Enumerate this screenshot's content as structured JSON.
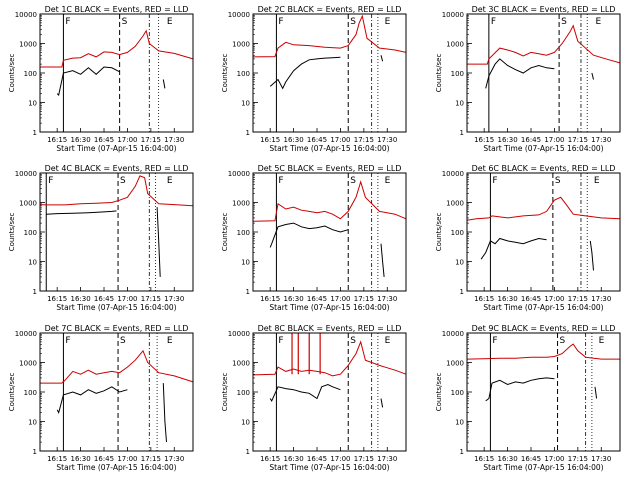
{
  "figure": {
    "shared": {
      "xlabel": "Start Time (07-Apr-15 16:04:00)",
      "ylabel": "Counts/sec",
      "x_tick_labels": [
        "16:15",
        "16:30",
        "16:45",
        "17:00",
        "17:15",
        "17:30"
      ],
      "y_tick_labels": [
        "1",
        "10",
        "100",
        "1000",
        "10000"
      ],
      "marker_labels": [
        "F",
        "S",
        "E"
      ],
      "series_colors": {
        "events": "#000000",
        "lld": "#cc0000"
      }
    }
  },
  "chart_data": [
    {
      "type": "line",
      "title": "Det 1C BLACK = Events, RED = LLD",
      "x_domain": [
        "16:04",
        "17:42"
      ],
      "ylim": [
        1,
        10000
      ],
      "y_scale": "log",
      "markers": {
        "F": "16:19",
        "S": "16:55",
        "dashdot": "17:14",
        "dotted": "17:20",
        "E": "17:24"
      },
      "lld": [
        [
          "16:04",
          160
        ],
        [
          "16:18",
          160
        ],
        [
          "16:19",
          270
        ],
        [
          "16:25",
          320
        ],
        [
          "16:30",
          330
        ],
        [
          "16:35",
          450
        ],
        [
          "16:40",
          350
        ],
        [
          "16:45",
          520
        ],
        [
          "16:50",
          500
        ],
        [
          "16:55",
          420
        ],
        [
          "17:00",
          500
        ],
        [
          "17:05",
          800
        ],
        [
          "17:10",
          1800
        ],
        [
          "17:12",
          2700
        ],
        [
          "17:14",
          1000
        ],
        [
          "17:20",
          560
        ],
        [
          "17:30",
          460
        ],
        [
          "17:42",
          300
        ]
      ],
      "events": [
        [
          "16:15",
          20
        ],
        [
          "16:16",
          18
        ],
        [
          "16:19",
          100
        ],
        [
          "16:25",
          120
        ],
        [
          "16:30",
          90
        ],
        [
          "16:35",
          150
        ],
        [
          "16:40",
          90
        ],
        [
          "16:45",
          160
        ],
        [
          "16:50",
          150
        ],
        [
          "16:55",
          110
        ]
      ],
      "events_tail": [
        [
          "17:23",
          60
        ],
        [
          "17:24",
          30
        ]
      ]
    },
    {
      "type": "line",
      "title": "Det 2C BLACK = Events, RED = LLD",
      "x_domain": [
        "16:04",
        "17:42"
      ],
      "ylim": [
        1,
        10000
      ],
      "y_scale": "log",
      "markers": {
        "F": "16:19",
        "S": "17:05",
        "dashdot": "17:20",
        "dotted": "17:24",
        "E": "17:27"
      },
      "lld": [
        [
          "16:04",
          350
        ],
        [
          "16:18",
          360
        ],
        [
          "16:20",
          700
        ],
        [
          "16:25",
          1100
        ],
        [
          "16:30",
          900
        ],
        [
          "16:40",
          850
        ],
        [
          "16:50",
          750
        ],
        [
          "17:00",
          700
        ],
        [
          "17:05",
          850
        ],
        [
          "17:10",
          2000
        ],
        [
          "17:12",
          5000
        ],
        [
          "17:14",
          8500
        ],
        [
          "17:17",
          1500
        ],
        [
          "17:25",
          700
        ],
        [
          "17:35",
          600
        ],
        [
          "17:42",
          500
        ]
      ],
      "events": [
        [
          "16:15",
          35
        ],
        [
          "16:20",
          60
        ],
        [
          "16:23",
          30
        ],
        [
          "16:25",
          50
        ],
        [
          "16:30",
          120
        ],
        [
          "16:35",
          200
        ],
        [
          "16:40",
          280
        ],
        [
          "16:45",
          300
        ],
        [
          "16:50",
          320
        ],
        [
          "16:55",
          330
        ],
        [
          "17:00",
          340
        ]
      ],
      "events_tail": [
        [
          "17:26",
          400
        ],
        [
          "17:27",
          250
        ]
      ]
    },
    {
      "type": "line",
      "title": "Det 3C BLACK = Events, RED = LLD",
      "x_domain": [
        "16:04",
        "17:42"
      ],
      "ylim": [
        1,
        10000
      ],
      "y_scale": "log",
      "markers": {
        "F": "16:18",
        "S": "17:03",
        "dashdot": "17:17",
        "dotted": "17:21",
        "E": "17:25"
      },
      "lld": [
        [
          "16:04",
          200
        ],
        [
          "16:17",
          200
        ],
        [
          "16:18",
          300
        ],
        [
          "16:25",
          700
        ],
        [
          "16:30",
          600
        ],
        [
          "16:35",
          500
        ],
        [
          "16:40",
          380
        ],
        [
          "16:45",
          500
        ],
        [
          "16:50",
          450
        ],
        [
          "16:55",
          400
        ],
        [
          "17:00",
          500
        ],
        [
          "17:05",
          1000
        ],
        [
          "17:10",
          2500
        ],
        [
          "17:12",
          4000
        ],
        [
          "17:15",
          1200
        ],
        [
          "17:25",
          400
        ],
        [
          "17:35",
          280
        ],
        [
          "17:42",
          220
        ]
      ],
      "events": [
        [
          "16:16",
          30
        ],
        [
          "16:18",
          80
        ],
        [
          "16:22",
          200
        ],
        [
          "16:25",
          300
        ],
        [
          "16:30",
          180
        ],
        [
          "16:35",
          130
        ],
        [
          "16:40",
          100
        ],
        [
          "16:45",
          150
        ],
        [
          "16:50",
          180
        ],
        [
          "16:55",
          150
        ],
        [
          "17:00",
          140
        ]
      ],
      "events_tail": [
        [
          "17:24",
          100
        ],
        [
          "17:25",
          60
        ]
      ]
    },
    {
      "type": "line",
      "title": "Det 4C BLACK = Events, RED = LLD",
      "x_domain": [
        "16:04",
        "17:42"
      ],
      "ylim": [
        1,
        10000
      ],
      "y_scale": "log",
      "markers": {
        "F": "16:08",
        "S": "16:54",
        "dashdot": "17:14",
        "dotted": "17:18",
        "E": "17:24"
      },
      "lld": [
        [
          "16:04",
          850
        ],
        [
          "16:08",
          830
        ],
        [
          "16:20",
          830
        ],
        [
          "16:30",
          900
        ],
        [
          "16:40",
          950
        ],
        [
          "16:50",
          1000
        ],
        [
          "16:55",
          1200
        ],
        [
          "17:00",
          1500
        ],
        [
          "17:05",
          3500
        ],
        [
          "17:08",
          8000
        ],
        [
          "17:11",
          7000
        ],
        [
          "17:13",
          2000
        ],
        [
          "17:20",
          900
        ],
        [
          "17:30",
          850
        ],
        [
          "17:42",
          780
        ]
      ],
      "events": [
        [
          "16:08",
          400
        ],
        [
          "16:15",
          420
        ],
        [
          "16:25",
          430
        ],
        [
          "16:35",
          450
        ],
        [
          "16:45",
          480
        ],
        [
          "16:50",
          500
        ],
        [
          "16:53",
          520
        ]
      ],
      "events_tail": [
        [
          "17:19",
          700
        ],
        [
          "17:20",
          50
        ],
        [
          "17:21",
          3
        ]
      ]
    },
    {
      "type": "line",
      "title": "Det 5C BLACK = Events, RED = LLD",
      "x_domain": [
        "16:04",
        "17:42"
      ],
      "ylim": [
        1,
        10000
      ],
      "y_scale": "log",
      "markers": {
        "F": "16:19",
        "S": "17:05",
        "dashdot": "17:20",
        "dotted": "17:24",
        "E": "17:27"
      },
      "lld": [
        [
          "16:04",
          230
        ],
        [
          "16:18",
          240
        ],
        [
          "16:20",
          900
        ],
        [
          "16:25",
          600
        ],
        [
          "16:30",
          700
        ],
        [
          "16:35",
          550
        ],
        [
          "16:40",
          500
        ],
        [
          "16:45",
          450
        ],
        [
          "16:50",
          500
        ],
        [
          "16:55",
          400
        ],
        [
          "17:00",
          280
        ],
        [
          "17:05",
          500
        ],
        [
          "17:10",
          1500
        ],
        [
          "17:13",
          5000
        ],
        [
          "17:16",
          1500
        ],
        [
          "17:25",
          500
        ],
        [
          "17:35",
          400
        ],
        [
          "17:42",
          280
        ]
      ],
      "events": [
        [
          "16:15",
          30
        ],
        [
          "16:16",
          40
        ],
        [
          "16:20",
          150
        ],
        [
          "16:25",
          180
        ],
        [
          "16:30",
          200
        ],
        [
          "16:35",
          150
        ],
        [
          "16:40",
          130
        ],
        [
          "16:45",
          140
        ],
        [
          "16:50",
          160
        ],
        [
          "16:55",
          120
        ],
        [
          "17:00",
          100
        ],
        [
          "17:05",
          120
        ]
      ],
      "events_tail": [
        [
          "17:26",
          40
        ],
        [
          "17:27",
          10
        ],
        [
          "17:28",
          3
        ]
      ]
    },
    {
      "type": "line",
      "title": "Det 6C BLACK = Events, RED = LLD",
      "x_domain": [
        "16:04",
        "17:42"
      ],
      "ylim": [
        1,
        10000
      ],
      "y_scale": "log",
      "markers": {
        "F": "16:19",
        "S": "16:59",
        "dashdot": "17:17",
        "dotted": "17:21",
        "E": "17:24"
      },
      "lld": [
        [
          "16:04",
          250
        ],
        [
          "16:10",
          280
        ],
        [
          "16:18",
          300
        ],
        [
          "16:20",
          350
        ],
        [
          "16:30",
          300
        ],
        [
          "16:40",
          350
        ],
        [
          "16:50",
          380
        ],
        [
          "16:55",
          500
        ],
        [
          "17:00",
          1200
        ],
        [
          "17:04",
          1500
        ],
        [
          "17:08",
          800
        ],
        [
          "17:12",
          400
        ],
        [
          "17:20",
          350
        ],
        [
          "17:30",
          300
        ],
        [
          "17:42",
          280
        ]
      ],
      "events": [
        [
          "16:13",
          12
        ],
        [
          "16:16",
          20
        ],
        [
          "16:19",
          50
        ],
        [
          "16:22",
          40
        ],
        [
          "16:25",
          60
        ],
        [
          "16:30",
          50
        ],
        [
          "16:35",
          45
        ],
        [
          "16:40",
          40
        ],
        [
          "16:45",
          50
        ],
        [
          "16:50",
          60
        ],
        [
          "16:55",
          55
        ]
      ],
      "events_tail": [
        [
          "17:23",
          50
        ],
        [
          "17:24",
          20
        ],
        [
          "17:25",
          5
        ]
      ]
    },
    {
      "type": "line",
      "title": "Det 7C BLACK = Events, RED = LLD",
      "x_domain": [
        "16:04",
        "17:42"
      ],
      "ylim": [
        1,
        10000
      ],
      "y_scale": "log",
      "markers": {
        "F": "16:19",
        "S": "16:54",
        "dashdot": "17:14",
        "dotted": "17:19",
        "E": "17:24"
      },
      "lld": [
        [
          "16:04",
          200
        ],
        [
          "16:18",
          200
        ],
        [
          "16:20",
          250
        ],
        [
          "16:25",
          500
        ],
        [
          "16:30",
          400
        ],
        [
          "16:35",
          550
        ],
        [
          "16:40",
          400
        ],
        [
          "16:45",
          450
        ],
        [
          "16:50",
          500
        ],
        [
          "16:55",
          450
        ],
        [
          "17:00",
          700
        ],
        [
          "17:05",
          1200
        ],
        [
          "17:10",
          2500
        ],
        [
          "17:13",
          1000
        ],
        [
          "17:20",
          450
        ],
        [
          "17:30",
          350
        ],
        [
          "17:42",
          220
        ]
      ],
      "events": [
        [
          "16:15",
          25
        ],
        [
          "16:16",
          20
        ],
        [
          "16:19",
          80
        ],
        [
          "16:25",
          100
        ],
        [
          "16:30",
          80
        ],
        [
          "16:35",
          120
        ],
        [
          "16:40",
          90
        ],
        [
          "16:45",
          110
        ],
        [
          "16:50",
          150
        ],
        [
          "16:55",
          100
        ],
        [
          "17:00",
          120
        ]
      ],
      "events_tail": [
        [
          "17:23",
          200
        ],
        [
          "17:24",
          10
        ],
        [
          "17:25",
          2
        ]
      ]
    },
    {
      "type": "line",
      "title": "Det 8C BLACK = Events, RED = LLD",
      "x_domain": [
        "16:04",
        "17:42"
      ],
      "ylim": [
        1,
        10000
      ],
      "y_scale": "log",
      "markers": {
        "F": "16:19",
        "S": "17:05",
        "dashdot": "17:20",
        "dotted": "17:24",
        "E": "17:27"
      },
      "spikes": [
        "16:29",
        "16:33",
        "16:40",
        "16:47"
      ],
      "lld": [
        [
          "16:04",
          380
        ],
        [
          "16:18",
          400
        ],
        [
          "16:20",
          700
        ],
        [
          "16:25",
          500
        ],
        [
          "16:30",
          600
        ],
        [
          "16:35",
          500
        ],
        [
          "16:40",
          550
        ],
        [
          "16:45",
          500
        ],
        [
          "16:50",
          450
        ],
        [
          "16:55",
          350
        ],
        [
          "17:00",
          400
        ],
        [
          "17:05",
          800
        ],
        [
          "17:10",
          2000
        ],
        [
          "17:13",
          5000
        ],
        [
          "17:16",
          1200
        ],
        [
          "17:25",
          800
        ],
        [
          "17:35",
          550
        ],
        [
          "17:42",
          400
        ]
      ],
      "events": [
        [
          "16:15",
          60
        ],
        [
          "16:16",
          50
        ],
        [
          "16:20",
          150
        ],
        [
          "16:25",
          130
        ],
        [
          "16:30",
          120
        ],
        [
          "16:35",
          100
        ],
        [
          "16:40",
          90
        ],
        [
          "16:45",
          60
        ],
        [
          "16:48",
          150
        ],
        [
          "16:52",
          180
        ],
        [
          "16:55",
          150
        ],
        [
          "17:00",
          120
        ]
      ],
      "events_tail": [
        [
          "17:26",
          60
        ],
        [
          "17:27",
          30
        ]
      ]
    },
    {
      "type": "line",
      "title": "Det 9C BLACK = Events, RED = LLD",
      "x_domain": [
        "16:04",
        "17:42"
      ],
      "ylim": [
        1,
        10000
      ],
      "y_scale": "log",
      "markers": {
        "F": "16:19",
        "S": "17:02",
        "dashdot": "17:20",
        "dotted": "17:24",
        "E": "17:27"
      },
      "lld": [
        [
          "16:04",
          1300
        ],
        [
          "16:15",
          1350
        ],
        [
          "16:25",
          1400
        ],
        [
          "16:35",
          1400
        ],
        [
          "16:45",
          1500
        ],
        [
          "16:55",
          1500
        ],
        [
          "17:00",
          1600
        ],
        [
          "17:05",
          2000
        ],
        [
          "17:10",
          3500
        ],
        [
          "17:12",
          4200
        ],
        [
          "17:15",
          2500
        ],
        [
          "17:20",
          1500
        ],
        [
          "17:30",
          1300
        ],
        [
          "17:42",
          1300
        ]
      ],
      "events": [
        [
          "16:16",
          50
        ],
        [
          "16:18",
          60
        ],
        [
          "16:20",
          200
        ],
        [
          "16:25",
          250
        ],
        [
          "16:30",
          180
        ],
        [
          "16:35",
          220
        ],
        [
          "16:40",
          200
        ],
        [
          "16:45",
          250
        ],
        [
          "16:50",
          280
        ],
        [
          "16:55",
          300
        ],
        [
          "17:00",
          280
        ]
      ],
      "events_tail": [
        [
          "17:26",
          150
        ],
        [
          "17:27",
          60
        ]
      ]
    }
  ]
}
